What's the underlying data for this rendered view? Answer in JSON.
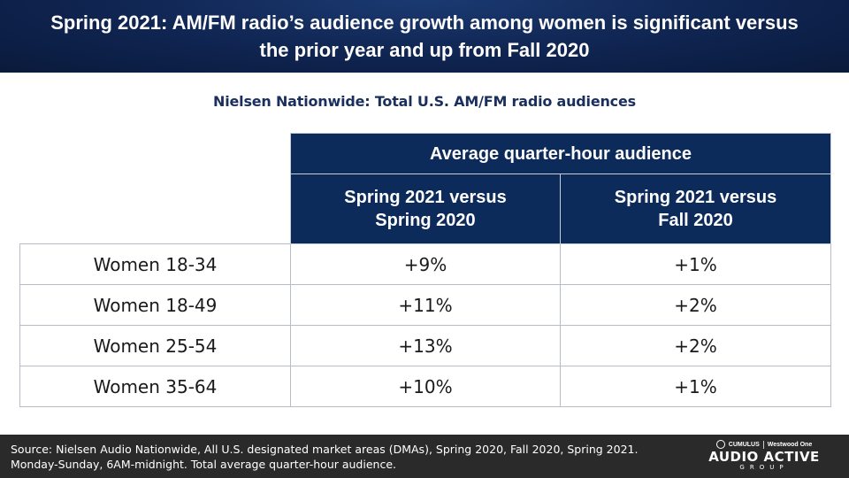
{
  "header": {
    "title": "Spring 2021: AM/FM radio’s audience growth among women is significant versus the prior year and up from Fall 2020"
  },
  "subtitle": "Nielsen Nationwide: Total U.S. AM/FM radio audiences",
  "table": {
    "group_header": "Average quarter-hour audience",
    "columns": [
      "Spring 2021 versus Spring 2020",
      "Spring 2021 versus Fall 2020"
    ],
    "rows": [
      {
        "label": "Women 18-34",
        "values": [
          "+9%",
          "+1%"
        ]
      },
      {
        "label": "Women 18-49",
        "values": [
          "+11%",
          "+2%"
        ]
      },
      {
        "label": "Women 25-54",
        "values": [
          "+13%",
          "+2%"
        ]
      },
      {
        "label": "Women 35-64",
        "values": [
          "+10%",
          "+1%"
        ]
      }
    ]
  },
  "footer": {
    "source": "Source: Nielsen Audio Nationwide, All U.S. designated market areas (DMAs),  Spring 2020, Fall 2020, Spring 2021. Monday-Sunday, 6AM-midnight. Total average quarter-hour audience.",
    "logo": {
      "brand_left": "CUMULUS",
      "brand_right": "Westwood One",
      "main": "AUDIO ACTIVE",
      "sub": "GROUP"
    }
  },
  "colors": {
    "header_bg": "#0f2450",
    "table_header_bg": "#0c2b5b",
    "footer_bg": "#2a2a2a"
  }
}
